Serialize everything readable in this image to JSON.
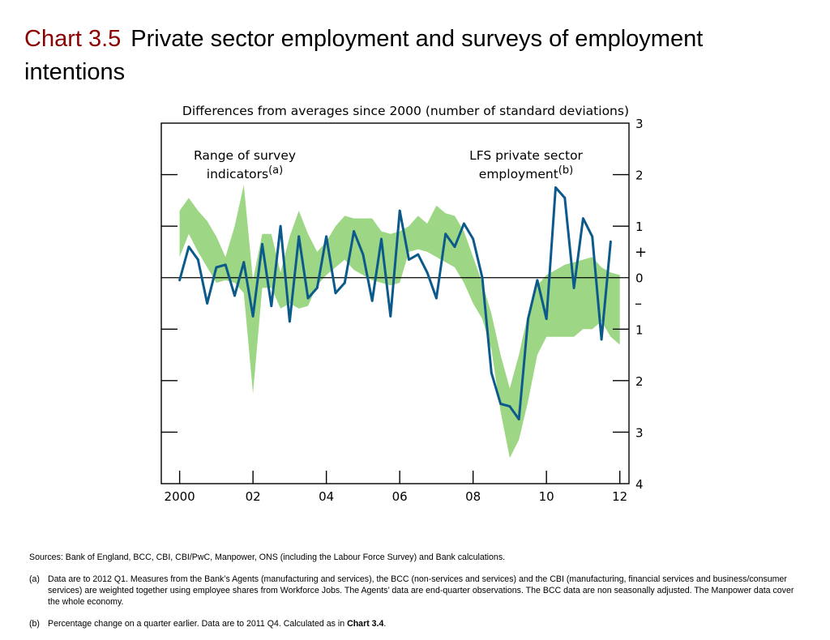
{
  "title": {
    "chart_number": "Chart 3.5",
    "text": "Private sector employment and surveys of employment intentions"
  },
  "colors": {
    "title_number": "#8b0000",
    "range_band": "#9dd785",
    "line": "#0c5a8c",
    "axis": "#000000"
  },
  "notes": {
    "sources": "Sources:  Bank of England, BCC, CBI, CBI/PwC, Manpower, ONS (including the Labour Force Survey) and Bank calculations.",
    "footnotes": [
      {
        "mark": "(a)",
        "text": "Data are to 2012 Q1.  Measures from the Bank’s Agents (manufacturing and services), the BCC (non-services and services) and the CBI (manufacturing, financial services and business/consumer services) are weighted together using employee shares from Workforce Jobs.  The Agents’ data are end-quarter observations.  The BCC data are non seasonally adjusted.  The Manpower data cover the whole economy."
      },
      {
        "mark": "(b)",
        "text_before": "Percentage change on a quarter earlier.  Data are to 2011 Q4.  Calculated as in ",
        "text_bold": "Chart 3.4",
        "text_after": "."
      }
    ]
  },
  "chart_data": {
    "type": "line",
    "ylabel": "Differences from averages since 2000 (number of standard deviations)",
    "xlim": [
      1999.5,
      2012.25
    ],
    "ylim": [
      -4,
      3
    ],
    "x_ticks": [
      2000,
      2002,
      2004,
      2006,
      2008,
      2010,
      2012
    ],
    "x_tick_labels": [
      "2000",
      "02",
      "04",
      "06",
      "08",
      "10",
      "12"
    ],
    "y_ticks": [
      3,
      2,
      1,
      0,
      -1,
      -2,
      -3,
      -4
    ],
    "y_tick_labels": [
      "3",
      "2",
      "1",
      "0",
      "1",
      "2",
      "3",
      "4"
    ],
    "sign_labels": {
      "plus": "+",
      "minus": "–"
    },
    "annotations": [
      {
        "lines": [
          "Range of survey",
          "indicators"
        ],
        "superscript": "(a)"
      },
      {
        "lines": [
          "LFS private sector",
          "employment"
        ],
        "superscript": "(b)"
      }
    ],
    "grid": false,
    "legend": "none",
    "series": [
      {
        "name": "Range of survey indicators",
        "kind": "band",
        "x": [
          2000.0,
          2000.25,
          2000.5,
          2000.75,
          2001.0,
          2001.25,
          2001.5,
          2001.75,
          2002.0,
          2002.25,
          2002.5,
          2002.75,
          2003.0,
          2003.25,
          2003.5,
          2003.75,
          2004.0,
          2004.25,
          2004.5,
          2004.75,
          2005.0,
          2005.25,
          2005.5,
          2005.75,
          2006.0,
          2006.25,
          2006.5,
          2006.75,
          2007.0,
          2007.25,
          2007.5,
          2007.75,
          2008.0,
          2008.25,
          2008.5,
          2008.75,
          2009.0,
          2009.25,
          2009.5,
          2009.75,
          2010.0,
          2010.25,
          2010.5,
          2010.75,
          2011.0,
          2011.25,
          2011.5,
          2011.75,
          2012.0
        ],
        "upper": [
          1.3,
          1.55,
          1.3,
          1.1,
          0.8,
          0.4,
          1.0,
          1.8,
          -0.05,
          0.85,
          0.85,
          0.1,
          0.8,
          1.3,
          0.85,
          0.5,
          0.7,
          1.0,
          1.2,
          1.15,
          1.15,
          1.15,
          0.9,
          0.85,
          0.9,
          1.0,
          1.2,
          1.05,
          1.4,
          1.25,
          1.2,
          0.9,
          0.4,
          -0.1,
          -0.7,
          -1.5,
          -2.15,
          -1.5,
          -0.7,
          -0.15,
          0.05,
          0.15,
          0.25,
          0.3,
          0.35,
          0.4,
          0.2,
          0.1,
          0.05
        ],
        "lower": [
          0.4,
          0.85,
          0.5,
          0.2,
          -0.1,
          -0.05,
          -0.1,
          -0.3,
          -2.25,
          -0.2,
          -0.2,
          -0.6,
          -0.5,
          -0.6,
          -0.55,
          -0.15,
          0.05,
          0.2,
          0.35,
          0.15,
          0.05,
          -0.05,
          -0.1,
          -0.15,
          -0.1,
          0.5,
          0.55,
          0.5,
          0.4,
          0.3,
          0.2,
          -0.1,
          -0.5,
          -0.8,
          -1.4,
          -2.6,
          -3.5,
          -3.15,
          -2.4,
          -1.5,
          -1.15,
          -1.15,
          -1.15,
          -1.15,
          -1.0,
          -1.0,
          -0.85,
          -1.15,
          -1.3
        ]
      },
      {
        "name": "LFS private sector employment",
        "kind": "line",
        "x": [
          2000.0,
          2000.25,
          2000.5,
          2000.75,
          2001.0,
          2001.25,
          2001.5,
          2001.75,
          2002.0,
          2002.25,
          2002.5,
          2002.75,
          2003.0,
          2003.25,
          2003.5,
          2003.75,
          2004.0,
          2004.25,
          2004.5,
          2004.75,
          2005.0,
          2005.25,
          2005.5,
          2005.75,
          2006.0,
          2006.25,
          2006.5,
          2006.75,
          2007.0,
          2007.25,
          2007.5,
          2007.75,
          2008.0,
          2008.25,
          2008.5,
          2008.75,
          2009.0,
          2009.25,
          2009.5,
          2009.75,
          2010.0,
          2010.25,
          2010.5,
          2010.75,
          2011.0,
          2011.25,
          2011.5,
          2011.75
        ],
        "values": [
          -0.05,
          0.6,
          0.35,
          -0.5,
          0.2,
          0.25,
          -0.35,
          0.3,
          -0.75,
          0.65,
          -0.55,
          1.0,
          -0.85,
          0.8,
          -0.4,
          -0.2,
          0.8,
          -0.3,
          -0.1,
          0.9,
          0.45,
          -0.45,
          0.75,
          -0.75,
          1.3,
          0.35,
          0.45,
          0.1,
          -0.4,
          0.85,
          0.6,
          1.05,
          0.75,
          0.0,
          -1.85,
          -2.45,
          -2.5,
          -2.75,
          -0.8,
          -0.05,
          -0.8,
          1.75,
          1.55,
          -0.2,
          1.15,
          0.8,
          -1.2,
          0.7
        ]
      }
    ]
  }
}
